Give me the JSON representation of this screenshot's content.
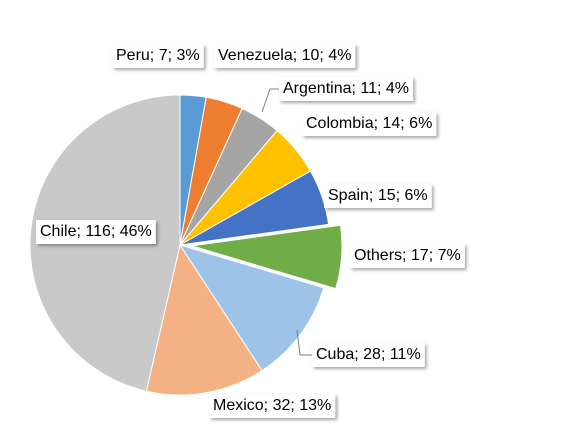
{
  "chart_data": {
    "type": "pie",
    "values": [
      7,
      10,
      11,
      14,
      15,
      17,
      28,
      32,
      116
    ],
    "value_labels": [
      "Peru; 7; 3%",
      "Venezuela; 10; 4%",
      "Argentina; 11; 4%",
      "Colombia; 14; 6%",
      "Spain; 15; 6%",
      "Others; 17; 7%",
      "Cuba; 28; 11%",
      "Mexico; 32; 13%",
      "Chile; 116; 46%"
    ],
    "colors": [
      "#5b9bd5",
      "#ed7d31",
      "#a5a5a5",
      "#ffc000",
      "#4472c4",
      "#70ad47",
      "#9dc3e6",
      "#f4b183",
      "#c9c9c9"
    ],
    "exploded": [
      false,
      false,
      false,
      false,
      false,
      true,
      false,
      false,
      false
    ]
  }
}
